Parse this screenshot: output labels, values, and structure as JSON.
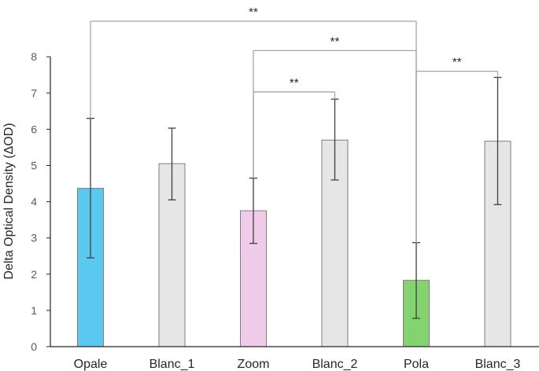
{
  "chart_data": {
    "type": "bar",
    "title": "",
    "xlabel": "",
    "ylabel": "Delta Optical Density (ΔOD)",
    "ylim": [
      0,
      8
    ],
    "yticks": [
      "0",
      "1",
      "2",
      "3",
      "4",
      "5",
      "6",
      "7",
      "8"
    ],
    "grid": false,
    "legend": "none",
    "categories": [
      "Opale",
      "Blanc_1",
      "Zoom",
      "Blanc_2",
      "Pola",
      "Blanc_3"
    ],
    "values": [
      4.37,
      5.05,
      3.75,
      5.7,
      1.83,
      5.67
    ],
    "error_low": [
      2.45,
      4.05,
      2.85,
      4.6,
      0.78,
      3.92
    ],
    "error_high": [
      6.3,
      6.03,
      4.65,
      6.83,
      2.87,
      7.43
    ],
    "colors": [
      "#5bc8f0",
      "#e6e6e6",
      "#f0cbea",
      "#e6e6e6",
      "#85d36e",
      "#e6e6e6"
    ],
    "significance": [
      {
        "from": "Opale",
        "to": "Pola",
        "label": "**",
        "level": 8.98
      },
      {
        "from": "Zoom",
        "to": "Pola",
        "label": "**",
        "level": 8.17
      },
      {
        "from": "Zoom",
        "to": "Blanc_2",
        "label": "**",
        "level": 7.03
      },
      {
        "from": "Pola",
        "to": "Blanc_3",
        "label": "**",
        "level": 7.6
      }
    ]
  }
}
